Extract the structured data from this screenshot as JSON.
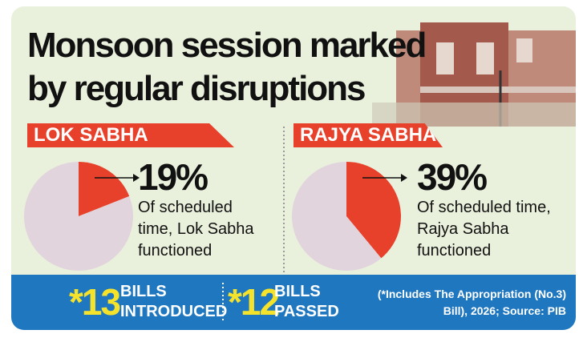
{
  "title": "Monsoon session marked by regular disruptions",
  "chart_data": [
    {
      "type": "pie",
      "title": "LOK SABHA",
      "values": [
        19,
        81
      ],
      "value_labels": [
        "19%",
        null
      ],
      "colors": [
        "#e8412b",
        "#e2d4dd"
      ],
      "annotation": "Of scheduled time, Lok Sabha functioned"
    },
    {
      "type": "pie",
      "title": "RAJYA SABHA",
      "values": [
        39,
        61
      ],
      "value_labels": [
        "39%",
        null
      ],
      "colors": [
        "#e8412b",
        "#e2d4dd"
      ],
      "annotation": "Of scheduled time, Rajya Sabha functioned"
    }
  ],
  "footer": {
    "items": [
      {
        "count": "*13",
        "label": "BILLS INTRODUCED"
      },
      {
        "count": "*12",
        "label": "BILLS PASSED"
      }
    ],
    "note": "(*Includes The Appropriation (No.3) Bill), 2026; Source: PIB"
  }
}
